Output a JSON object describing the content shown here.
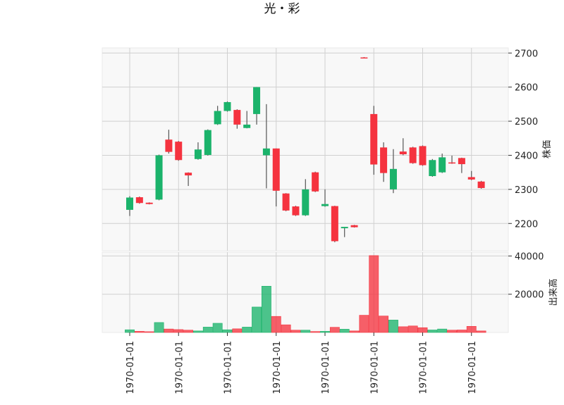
{
  "title": "光・彩",
  "chart_data": [
    {
      "type": "candlestick",
      "ylabel": "株価",
      "ylim": [
        2120,
        2715
      ],
      "yticks": [
        2200,
        2300,
        2400,
        2500,
        2600,
        2700
      ],
      "x_tick_labels": [
        "1970-01-01",
        "1970-01-01",
        "1970-01-01",
        "1970-01-01",
        "1970-01-01",
        "1970-01-01",
        "1970-01-01",
        "1970-01-01"
      ],
      "x_tick_index": [
        0,
        5,
        10,
        15,
        20,
        25,
        30,
        35
      ],
      "up_color": "#1bb36b",
      "down_color": "#f5333f",
      "candles": [
        {
          "o": 2240,
          "h": 2280,
          "l": 2222,
          "c": 2276
        },
        {
          "o": 2277,
          "h": 2279,
          "l": 2258,
          "c": 2260
        },
        {
          "o": 2261,
          "h": 2262,
          "l": 2256,
          "c": 2257
        },
        {
          "o": 2270,
          "h": 2402,
          "l": 2268,
          "c": 2400
        },
        {
          "o": 2446,
          "h": 2475,
          "l": 2405,
          "c": 2410
        },
        {
          "o": 2440,
          "h": 2442,
          "l": 2384,
          "c": 2386
        },
        {
          "o": 2349,
          "h": 2350,
          "l": 2310,
          "c": 2341
        },
        {
          "o": 2389,
          "h": 2438,
          "l": 2387,
          "c": 2417
        },
        {
          "o": 2401,
          "h": 2476,
          "l": 2399,
          "c": 2474
        },
        {
          "o": 2491,
          "h": 2545,
          "l": 2489,
          "c": 2530
        },
        {
          "o": 2530,
          "h": 2558,
          "l": 2528,
          "c": 2556
        },
        {
          "o": 2533,
          "h": 2535,
          "l": 2478,
          "c": 2490
        },
        {
          "o": 2480,
          "h": 2530,
          "l": 2479,
          "c": 2490
        },
        {
          "o": 2521,
          "h": 2600,
          "l": 2490,
          "c": 2600
        },
        {
          "o": 2400,
          "h": 2550,
          "l": 2303,
          "c": 2420
        },
        {
          "o": 2420,
          "h": 2420,
          "l": 2250,
          "c": 2296
        },
        {
          "o": 2288,
          "h": 2289,
          "l": 2236,
          "c": 2238
        },
        {
          "o": 2250,
          "h": 2252,
          "l": 2222,
          "c": 2224
        },
        {
          "o": 2224,
          "h": 2330,
          "l": 2222,
          "c": 2300
        },
        {
          "o": 2350,
          "h": 2352,
          "l": 2292,
          "c": 2294
        },
        {
          "o": 2251,
          "h": 2300,
          "l": 2249,
          "c": 2257
        },
        {
          "o": 2251,
          "h": 2252,
          "l": 2145,
          "c": 2148
        },
        {
          "o": 2186,
          "h": 2190,
          "l": 2160,
          "c": 2190
        },
        {
          "o": 2195,
          "h": 2196,
          "l": 2188,
          "c": 2189
        },
        {
          "o": 2687,
          "h": 2688,
          "l": 2685,
          "c": 2686
        },
        {
          "o": 2521,
          "h": 2545,
          "l": 2343,
          "c": 2373
        },
        {
          "o": 2423,
          "h": 2438,
          "l": 2322,
          "c": 2348
        },
        {
          "o": 2300,
          "h": 2418,
          "l": 2289,
          "c": 2360
        },
        {
          "o": 2411,
          "h": 2450,
          "l": 2400,
          "c": 2403
        },
        {
          "o": 2423,
          "h": 2425,
          "l": 2375,
          "c": 2377
        },
        {
          "o": 2427,
          "h": 2429,
          "l": 2369,
          "c": 2371
        },
        {
          "o": 2339,
          "h": 2389,
          "l": 2337,
          "c": 2386
        },
        {
          "o": 2350,
          "h": 2405,
          "l": 2348,
          "c": 2394
        },
        {
          "o": 2379,
          "h": 2399,
          "l": 2375,
          "c": 2377
        },
        {
          "o": 2392,
          "h": 2393,
          "l": 2348,
          "c": 2374
        },
        {
          "o": 2336,
          "h": 2354,
          "l": 2327,
          "c": 2329
        },
        {
          "o": 2323,
          "h": 2325,
          "l": 2302,
          "c": 2304
        }
      ]
    },
    {
      "type": "bar",
      "ylabel": "出来高",
      "ylim": [
        0,
        42000
      ],
      "yticks": [
        20000,
        40000
      ],
      "up_color": "#1bb36b",
      "down_color": "#f5333f",
      "volumes": [
        1400,
        600,
        400,
        5200,
        1800,
        1500,
        1200,
        800,
        2800,
        4800,
        1400,
        1900,
        2800,
        13300,
        24200,
        8400,
        4000,
        1200,
        1200,
        500,
        600,
        2700,
        1700,
        800,
        9000,
        40200,
        8600,
        6500,
        3000,
        3400,
        2500,
        1300,
        1800,
        1200,
        1300,
        3200,
        800
      ]
    }
  ]
}
